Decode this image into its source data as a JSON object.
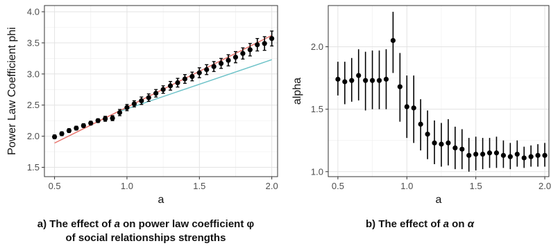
{
  "captions": {
    "a_prefix": "a) The effect of ",
    "a_var": "a",
    "a_mid": " on power law coefficient ",
    "a_sym": "φ",
    "a_line2": "of social relationships strengths",
    "b_prefix": "b) The effect of ",
    "b_var": "a",
    "b_mid": " on ",
    "b_sym": "α"
  },
  "chart_data": [
    {
      "type": "scatter",
      "title": "",
      "xlabel": "a",
      "ylabel": "Power Law Coefficient phi",
      "xlim": [
        0.43,
        2.04
      ],
      "ylim": [
        1.35,
        4.1
      ],
      "xticks": [
        0.5,
        1.0,
        1.5,
        2.0
      ],
      "xtick_labels": [
        "0.5",
        "1.0",
        "1.5",
        "2.0"
      ],
      "yticks": [
        1.5,
        2.0,
        2.5,
        3.0,
        3.5,
        4.0
      ],
      "ytick_labels": [
        "1.5",
        "2.0",
        "2.5",
        "3.0",
        "3.5",
        "4.0"
      ],
      "grid": true,
      "legend": "none",
      "points": {
        "x": [
          0.5,
          0.55,
          0.6,
          0.65,
          0.7,
          0.75,
          0.8,
          0.85,
          0.9,
          0.95,
          1.0,
          1.05,
          1.1,
          1.15,
          1.2,
          1.25,
          1.3,
          1.35,
          1.4,
          1.45,
          1.5,
          1.55,
          1.6,
          1.65,
          1.7,
          1.75,
          1.8,
          1.85,
          1.9,
          1.95,
          2.0
        ],
        "y": [
          1.99,
          2.04,
          2.09,
          2.13,
          2.17,
          2.21,
          2.25,
          2.28,
          2.29,
          2.38,
          2.46,
          2.52,
          2.57,
          2.62,
          2.69,
          2.75,
          2.81,
          2.86,
          2.92,
          2.96,
          3.02,
          3.07,
          3.12,
          3.17,
          3.22,
          3.27,
          3.33,
          3.39,
          3.47,
          3.49,
          3.57
        ],
        "err": [
          0.03,
          0.03,
          0.03,
          0.03,
          0.03,
          0.03,
          0.03,
          0.04,
          0.04,
          0.05,
          0.05,
          0.05,
          0.06,
          0.06,
          0.06,
          0.06,
          0.07,
          0.07,
          0.07,
          0.07,
          0.08,
          0.08,
          0.08,
          0.08,
          0.09,
          0.09,
          0.09,
          0.1,
          0.1,
          0.11,
          0.12
        ]
      },
      "fit_lines": [
        {
          "color": "#e8736c",
          "x": [
            0.5,
            2.0
          ],
          "y": [
            1.89,
            3.62
          ]
        },
        {
          "color": "#6fc3c9",
          "x": [
            0.95,
            2.0
          ],
          "y": [
            2.4,
            3.23
          ]
        }
      ]
    },
    {
      "type": "scatter",
      "title": "",
      "xlabel": "a",
      "ylabel": "alpha",
      "xlim": [
        0.43,
        2.03
      ],
      "ylim": [
        0.96,
        2.33
      ],
      "xticks": [
        0.5,
        1.0,
        1.5,
        2.0
      ],
      "xtick_labels": [
        "0.5",
        "1.0",
        "1.5",
        "2.0"
      ],
      "yticks": [
        1.0,
        1.5,
        2.0
      ],
      "ytick_labels": [
        "1.0",
        "1.5",
        "2.0"
      ],
      "grid": true,
      "legend": "none",
      "points": {
        "x": [
          0.5,
          0.55,
          0.6,
          0.65,
          0.7,
          0.75,
          0.8,
          0.85,
          0.9,
          0.95,
          1.0,
          1.05,
          1.1,
          1.15,
          1.2,
          1.25,
          1.3,
          1.35,
          1.4,
          1.45,
          1.5,
          1.55,
          1.6,
          1.65,
          1.7,
          1.75,
          1.8,
          1.85,
          1.9,
          1.95,
          2.0
        ],
        "y": [
          1.74,
          1.72,
          1.73,
          1.77,
          1.73,
          1.73,
          1.73,
          1.74,
          2.05,
          1.68,
          1.52,
          1.51,
          1.38,
          1.3,
          1.23,
          1.22,
          1.23,
          1.19,
          1.18,
          1.13,
          1.14,
          1.14,
          1.15,
          1.15,
          1.13,
          1.12,
          1.14,
          1.11,
          1.12,
          1.13,
          1.13
        ],
        "lo": [
          1.61,
          1.54,
          1.56,
          1.57,
          1.49,
          1.5,
          1.5,
          1.5,
          1.79,
          1.4,
          1.27,
          1.23,
          1.17,
          1.1,
          1.06,
          1.04,
          1.05,
          1.02,
          1.02,
          1.0,
          1.01,
          1.02,
          1.03,
          1.03,
          1.03,
          1.02,
          1.04,
          1.03,
          1.04,
          1.04,
          1.04
        ],
        "hi": [
          1.88,
          1.88,
          1.91,
          1.98,
          1.96,
          1.97,
          1.97,
          1.98,
          2.28,
          1.95,
          1.77,
          1.77,
          1.58,
          1.49,
          1.41,
          1.39,
          1.42,
          1.36,
          1.34,
          1.27,
          1.28,
          1.27,
          1.27,
          1.28,
          1.25,
          1.23,
          1.25,
          1.2,
          1.21,
          1.22,
          1.23
        ]
      }
    }
  ]
}
